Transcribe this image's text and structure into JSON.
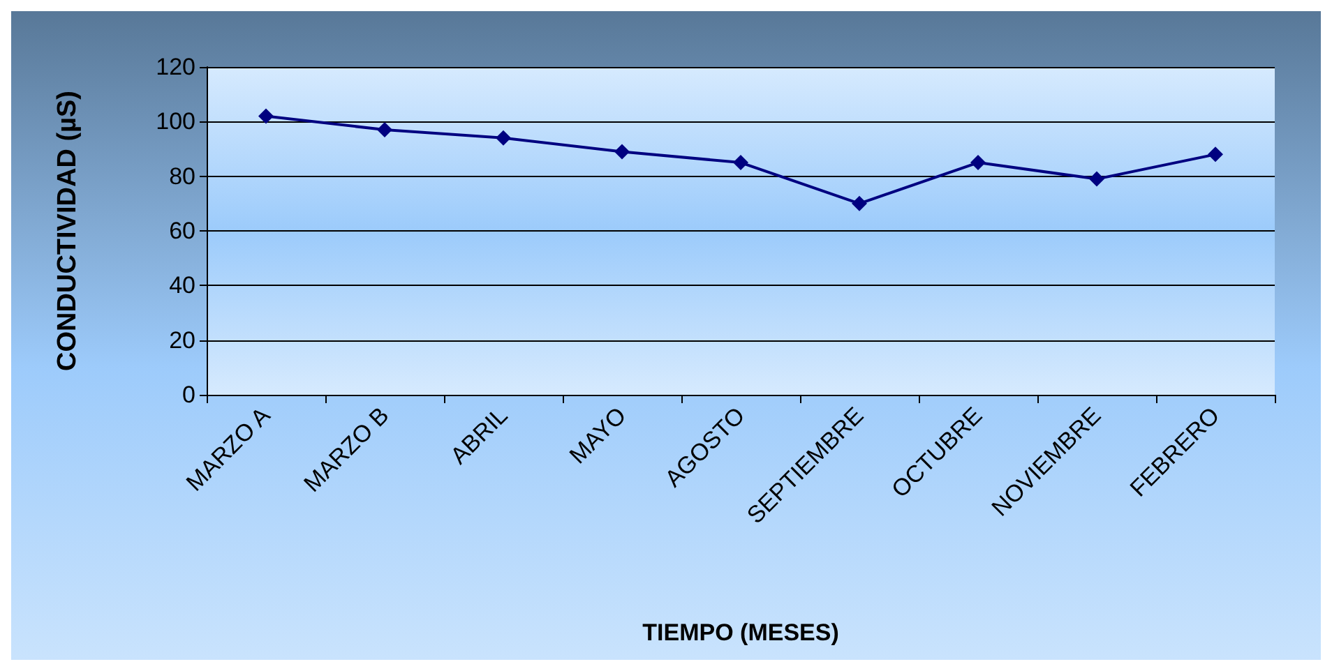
{
  "chart_data": {
    "type": "line",
    "xlabel": "TIEMPO (MESES)",
    "ylabel": "CONDUCTIVIDAD (µS)",
    "categories": [
      "MARZO A",
      "MARZO B",
      "ABRIL",
      "MAYO",
      "AGOSTO",
      "SEPTIEMBRE",
      "OCTUBRE",
      "NOVIEMBRE",
      "FEBRERO"
    ],
    "series": [
      {
        "color": "#000080",
        "values": [
          102,
          97,
          94,
          89,
          85,
          70,
          85,
          79,
          88
        ]
      }
    ],
    "ylim": [
      0,
      120
    ],
    "yticks": [
      0,
      20,
      40,
      60,
      80,
      100,
      120
    ],
    "grid": "y",
    "marker": "diamond",
    "line_style": "solid"
  }
}
